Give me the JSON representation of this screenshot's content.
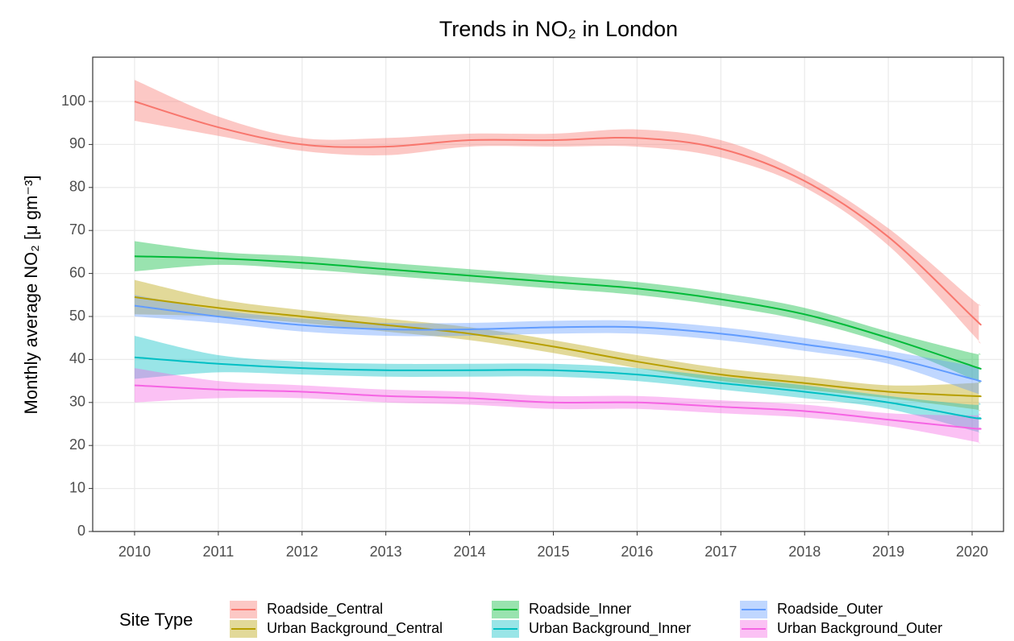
{
  "chart_data": {
    "type": "line",
    "title": "Trends in NO₂ in London",
    "y_label": "Monthly average NO₂ [μ gm⁻³]",
    "legend_title": "Site Type",
    "legend_position": "bottom",
    "grid": true,
    "x": [
      2010,
      2011,
      2012,
      2013,
      2014,
      2015,
      2016,
      2017,
      2018,
      2019,
      2020,
      2020.08
    ],
    "xlim": [
      2009.5,
      2020.375
    ],
    "xticks": [
      2010,
      2011,
      2012,
      2013,
      2014,
      2015,
      2016,
      2017,
      2018,
      2019,
      2020
    ],
    "ylim": [
      0,
      110.3
    ],
    "yticks": [
      0,
      10,
      20,
      30,
      40,
      50,
      60,
      70,
      80,
      90,
      100
    ],
    "series": [
      {
        "name": "Roadside_Central",
        "color": "#F8766D",
        "values": [
          100,
          94,
          90,
          89.5,
          91,
          91,
          91.5,
          89,
          81.5,
          68.5,
          50,
          48.5
        ],
        "lower": [
          95.5,
          92,
          88.5,
          87.5,
          89.5,
          89.5,
          89.5,
          87,
          80,
          66.5,
          46,
          44
        ],
        "upper": [
          105,
          96.5,
          91.5,
          91.5,
          92.5,
          92.5,
          93.5,
          91,
          83,
          70.5,
          54,
          53
        ]
      },
      {
        "name": "Urban Background_Central",
        "color": "#B79F00",
        "values": [
          54.5,
          52,
          50,
          48,
          46,
          43,
          39.5,
          36.5,
          34.5,
          32.5,
          31.5,
          31.5
        ],
        "lower": [
          50.5,
          50,
          48.5,
          46.5,
          44.5,
          41.5,
          38,
          35,
          33,
          31,
          28.5,
          28
        ],
        "upper": [
          58.5,
          54,
          51.5,
          49.5,
          47.5,
          44.5,
          41,
          38,
          36,
          34,
          34.5,
          35
        ]
      },
      {
        "name": "Roadside_Inner",
        "color": "#00BA38",
        "values": [
          64,
          63.5,
          62.5,
          61,
          59.5,
          58,
          56.5,
          54,
          50.5,
          45,
          38.5,
          38
        ],
        "lower": [
          60.5,
          62,
          61,
          59.5,
          58,
          56.5,
          55,
          52.5,
          49,
          43.5,
          35.5,
          34.5
        ],
        "upper": [
          67.5,
          65,
          64,
          62.5,
          61,
          59.5,
          58,
          55.5,
          52,
          46.5,
          41.5,
          41.5
        ]
      },
      {
        "name": "Urban Background_Inner",
        "color": "#00BFC4",
        "values": [
          40.5,
          39,
          38,
          37.5,
          37.5,
          37.5,
          36.5,
          34.5,
          32.5,
          30,
          26.5,
          26.5
        ],
        "lower": [
          35.5,
          37,
          36.5,
          36,
          36,
          36,
          35,
          33,
          31,
          28.5,
          23.5,
          23
        ],
        "upper": [
          45.5,
          41,
          39.5,
          39,
          39,
          39,
          38,
          36,
          34,
          31.5,
          29.5,
          30
        ]
      },
      {
        "name": "Roadside_Outer",
        "color": "#619CFF",
        "values": [
          52.5,
          50,
          48,
          47,
          47,
          47.5,
          47.5,
          46,
          43.5,
          40.5,
          35.5,
          35
        ],
        "lower": [
          50,
          48.5,
          46.5,
          45.5,
          45.5,
          46,
          46,
          44.5,
          42,
          39,
          32.5,
          32
        ],
        "upper": [
          55,
          51.5,
          49.5,
          48.5,
          48.5,
          49,
          49,
          47.5,
          45,
          42,
          38.5,
          38
        ]
      },
      {
        "name": "Urban Background_Outer",
        "color": "#F564E3",
        "values": [
          34,
          33,
          32.5,
          31.5,
          31,
          30,
          30,
          29,
          28,
          26,
          24,
          24
        ],
        "lower": [
          30,
          31,
          31,
          30,
          29.5,
          28.5,
          28.5,
          27.5,
          26.5,
          24.5,
          21,
          20.5
        ],
        "upper": [
          38,
          35,
          34,
          33,
          32.5,
          31.5,
          31.5,
          30.5,
          29.5,
          27.5,
          27,
          27.5
        ]
      }
    ]
  }
}
